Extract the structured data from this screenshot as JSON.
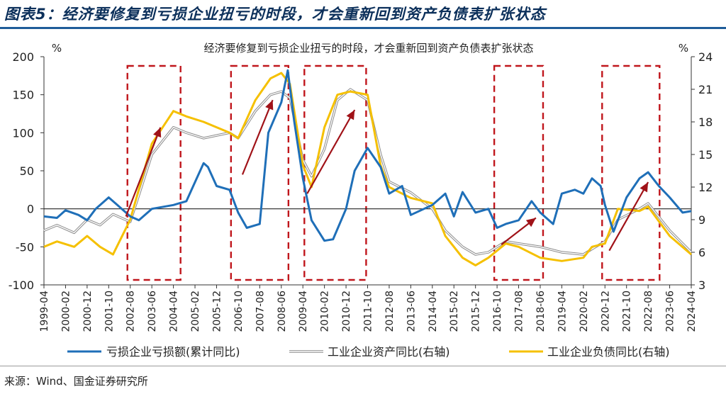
{
  "figure": {
    "title": "图表5：经济要修复到亏损企业扭亏的时段，才会重新回到资产负债表扩张状态",
    "source": "来源：Wind、国金证券研究所"
  },
  "chart_data": {
    "type": "line",
    "title": "经济要修复到亏损企业扭亏的时段，才会重新回到资产负债表扩张状态",
    "left_axis": {
      "unit": "%",
      "ylim": [
        -100,
        200
      ],
      "ticks": [
        200,
        150,
        100,
        50,
        0,
        -50,
        -100
      ]
    },
    "right_axis": {
      "unit": "%",
      "ylim": [
        3,
        24
      ],
      "ticks": [
        24,
        21,
        18,
        15,
        12,
        9,
        6,
        3
      ]
    },
    "x_tick_labels": [
      "1999-04",
      "2000-02",
      "2000-12",
      "2001-10",
      "2002-08",
      "2003-06",
      "2004-04",
      "2005-02",
      "2005-12",
      "2006-10",
      "2007-08",
      "2008-06",
      "2009-04",
      "2010-02",
      "2010-12",
      "2011-10",
      "2012-08",
      "2013-06",
      "2014-04",
      "2015-02",
      "2015-12",
      "2016-10",
      "2017-08",
      "2018-06",
      "2019-04",
      "2020-02",
      "2020-12",
      "2021-10",
      "2022-08",
      "2023-06",
      "2024-04"
    ],
    "legend": [
      "亏损企业亏损额(累计同比)",
      "工业企业资产同比(右轴)",
      "工业企业负债同比(右轴)"
    ],
    "series": [
      {
        "name": "亏损企业亏损额(累计同比)",
        "axis": "left",
        "color": "#1f6fb8",
        "points": [
          [
            "1999-04",
            -10
          ],
          [
            "1999-10",
            -12
          ],
          [
            "2000-02",
            -2
          ],
          [
            "2000-08",
            -8
          ],
          [
            "2000-12",
            -15
          ],
          [
            "2001-04",
            0
          ],
          [
            "2001-10",
            15
          ],
          [
            "2002-02",
            5
          ],
          [
            "2002-08",
            -10
          ],
          [
            "2002-12",
            -15
          ],
          [
            "2003-06",
            0
          ],
          [
            "2004-04",
            5
          ],
          [
            "2004-10",
            10
          ],
          [
            "2005-02",
            35
          ],
          [
            "2005-06",
            60
          ],
          [
            "2005-08",
            55
          ],
          [
            "2005-12",
            30
          ],
          [
            "2006-06",
            25
          ],
          [
            "2006-10",
            -5
          ],
          [
            "2007-02",
            -25
          ],
          [
            "2007-08",
            -20
          ],
          [
            "2007-12",
            100
          ],
          [
            "2008-06",
            140
          ],
          [
            "2008-09",
            182
          ],
          [
            "2008-12",
            115
          ],
          [
            "2009-04",
            40
          ],
          [
            "2009-08",
            -15
          ],
          [
            "2010-02",
            -42
          ],
          [
            "2010-06",
            -40
          ],
          [
            "2010-12",
            0
          ],
          [
            "2011-04",
            50
          ],
          [
            "2011-10",
            80
          ],
          [
            "2012-04",
            55
          ],
          [
            "2012-08",
            20
          ],
          [
            "2013-02",
            30
          ],
          [
            "2013-06",
            -8
          ],
          [
            "2014-04",
            5
          ],
          [
            "2014-10",
            20
          ],
          [
            "2015-02",
            -10
          ],
          [
            "2015-06",
            22
          ],
          [
            "2015-12",
            -5
          ],
          [
            "2016-06",
            0
          ],
          [
            "2016-10",
            -25
          ],
          [
            "2017-02",
            -20
          ],
          [
            "2017-08",
            -15
          ],
          [
            "2018-02",
            10
          ],
          [
            "2018-06",
            -5
          ],
          [
            "2018-12",
            -20
          ],
          [
            "2019-04",
            20
          ],
          [
            "2019-10",
            25
          ],
          [
            "2020-02",
            20
          ],
          [
            "2020-06",
            40
          ],
          [
            "2020-10",
            30
          ],
          [
            "2020-12",
            5
          ],
          [
            "2021-04",
            -30
          ],
          [
            "2021-10",
            15
          ],
          [
            "2022-04",
            40
          ],
          [
            "2022-08",
            48
          ],
          [
            "2023-01",
            30
          ],
          [
            "2023-06",
            15
          ],
          [
            "2023-12",
            -5
          ],
          [
            "2024-04",
            -3
          ]
        ]
      },
      {
        "name": "工业企业资产同比(右轴)",
        "axis": "right",
        "color": "#a8a8a8",
        "points": [
          [
            "1999-04",
            8.0
          ],
          [
            "1999-10",
            8.5
          ],
          [
            "2000-06",
            7.8
          ],
          [
            "2000-12",
            9.0
          ],
          [
            "2001-06",
            8.5
          ],
          [
            "2001-12",
            9.5
          ],
          [
            "2002-08",
            8.8
          ],
          [
            "2003-06",
            15.0
          ],
          [
            "2004-04",
            17.5
          ],
          [
            "2004-10",
            17.0
          ],
          [
            "2005-06",
            16.5
          ],
          [
            "2006-06",
            17.0
          ],
          [
            "2006-10",
            16.5
          ],
          [
            "2007-06",
            19.0
          ],
          [
            "2008-01",
            20.5
          ],
          [
            "2008-06",
            20.8
          ],
          [
            "2008-10",
            20.2
          ],
          [
            "2009-04",
            14.5
          ],
          [
            "2009-08",
            13.0
          ],
          [
            "2010-02",
            15.5
          ],
          [
            "2010-08",
            20.0
          ],
          [
            "2011-02",
            21.0
          ],
          [
            "2011-06",
            20.5
          ],
          [
            "2011-10",
            20.0
          ],
          [
            "2012-04",
            15.0
          ],
          [
            "2012-08",
            12.5
          ],
          [
            "2013-06",
            11.5
          ],
          [
            "2014-04",
            10.0
          ],
          [
            "2014-10",
            8.0
          ],
          [
            "2015-06",
            6.5
          ],
          [
            "2015-12",
            5.8
          ],
          [
            "2016-06",
            6.0
          ],
          [
            "2017-02",
            7.0
          ],
          [
            "2017-08",
            6.8
          ],
          [
            "2018-06",
            6.5
          ],
          [
            "2019-04",
            6.0
          ],
          [
            "2020-02",
            5.8
          ],
          [
            "2020-06",
            6.3
          ],
          [
            "2020-12",
            7.0
          ],
          [
            "2021-06",
            9.0
          ],
          [
            "2022-04",
            10.0
          ],
          [
            "2022-08",
            10.5
          ],
          [
            "2023-06",
            8.0
          ],
          [
            "2024-04",
            6.0
          ]
        ]
      },
      {
        "name": "工业企业负债同比(右轴)",
        "axis": "right",
        "color": "#f5c000",
        "points": [
          [
            "1999-04",
            6.5
          ],
          [
            "1999-10",
            7.0
          ],
          [
            "2000-06",
            6.5
          ],
          [
            "2000-12",
            7.5
          ],
          [
            "2001-06",
            6.5
          ],
          [
            "2001-12",
            5.8
          ],
          [
            "2002-08",
            9.0
          ],
          [
            "2003-06",
            16.0
          ],
          [
            "2004-04",
            19.0
          ],
          [
            "2004-10",
            18.5
          ],
          [
            "2005-06",
            18.0
          ],
          [
            "2006-06",
            17.0
          ],
          [
            "2006-10",
            16.5
          ],
          [
            "2007-06",
            20.0
          ],
          [
            "2008-01",
            22.0
          ],
          [
            "2008-06",
            22.5
          ],
          [
            "2008-10",
            21.5
          ],
          [
            "2009-04",
            14.0
          ],
          [
            "2009-08",
            12.0
          ],
          [
            "2010-02",
            17.5
          ],
          [
            "2010-08",
            20.5
          ],
          [
            "2011-02",
            20.8
          ],
          [
            "2011-10",
            20.5
          ],
          [
            "2012-04",
            14.0
          ],
          [
            "2012-08",
            12.0
          ],
          [
            "2013-06",
            11.0
          ],
          [
            "2014-04",
            10.5
          ],
          [
            "2014-10",
            7.5
          ],
          [
            "2015-06",
            5.5
          ],
          [
            "2015-12",
            4.8
          ],
          [
            "2016-06",
            5.5
          ],
          [
            "2017-02",
            6.8
          ],
          [
            "2017-08",
            6.5
          ],
          [
            "2018-06",
            5.5
          ],
          [
            "2019-04",
            5.2
          ],
          [
            "2020-02",
            5.5
          ],
          [
            "2020-06",
            6.5
          ],
          [
            "2020-12",
            6.8
          ],
          [
            "2021-06",
            10.0
          ],
          [
            "2022-04",
            9.8
          ],
          [
            "2022-08",
            10.2
          ],
          [
            "2023-06",
            7.5
          ],
          [
            "2024-04",
            5.8
          ]
        ]
      }
    ],
    "highlight_periods": [
      [
        "2002-08",
        "2004-06"
      ],
      [
        "2006-08",
        "2008-08"
      ],
      [
        "2009-06",
        "2011-08"
      ],
      [
        "2016-10",
        "2018-06"
      ],
      [
        "2020-12",
        "2022-12"
      ]
    ],
    "arrows": [
      {
        "from": [
          "2002-06",
          -10
        ],
        "to": [
          "2003-10",
          107
        ]
      },
      {
        "from": [
          "2006-12",
          45
        ],
        "to": [
          "2008-02",
          143
        ]
      },
      {
        "from": [
          "2009-06",
          20
        ],
        "to": [
          "2011-04",
          130
        ]
      },
      {
        "from": [
          "2016-12",
          -47
        ],
        "to": [
          "2018-04",
          -12
        ]
      },
      {
        "from": [
          "2021-02",
          -55
        ],
        "to": [
          "2022-08",
          35
        ]
      }
    ]
  }
}
